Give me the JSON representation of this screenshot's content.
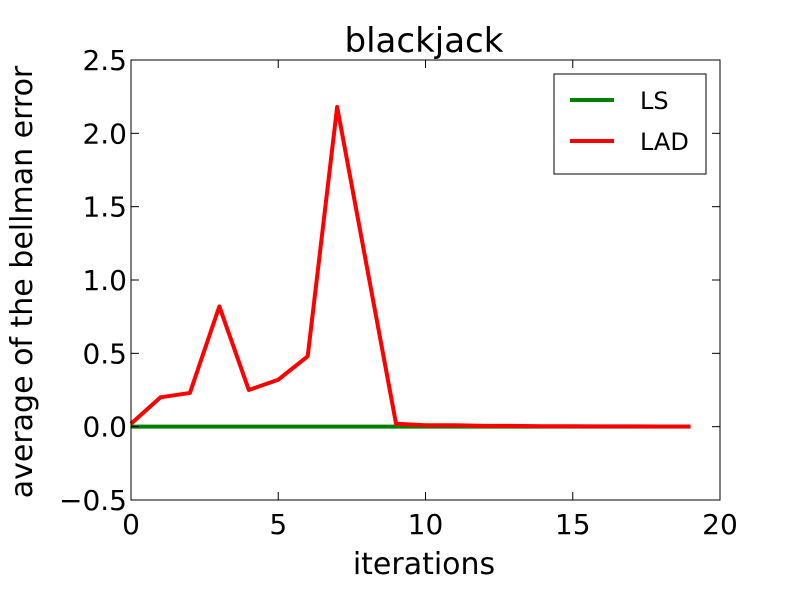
{
  "chart_data": {
    "type": "line",
    "title": "blackjack",
    "xlabel": "iterations",
    "ylabel": "average of the bellman error",
    "xlim": [
      0,
      20
    ],
    "ylim": [
      -0.5,
      2.5
    ],
    "xticks": [
      0,
      5,
      10,
      15,
      20
    ],
    "xtick_labels": [
      "0",
      "5",
      "10",
      "15",
      "20"
    ],
    "yticks": [
      -0.5,
      0.0,
      0.5,
      1.0,
      1.5,
      2.0,
      2.5
    ],
    "ytick_labels": [
      "−0.5",
      "0.0",
      "0.5",
      "1.0",
      "1.5",
      "2.0",
      "2.5"
    ],
    "grid": false,
    "legend_position": "top-right",
    "series": [
      {
        "name": "LS",
        "color": "#008000",
        "x": [
          0,
          1,
          2,
          3,
          4,
          5,
          6,
          7,
          8,
          9,
          10,
          11,
          12,
          13,
          14,
          15,
          16,
          17,
          18,
          19
        ],
        "y": [
          0,
          0,
          0,
          0,
          0,
          0,
          0,
          0,
          0,
          0,
          0,
          0,
          0,
          0,
          0,
          0,
          0,
          0,
          0,
          0
        ]
      },
      {
        "name": "LAD",
        "color": "#ff0000",
        "x": [
          0,
          1,
          2,
          3,
          4,
          5,
          6,
          7,
          8,
          9,
          10,
          11,
          12,
          13,
          14,
          15,
          16,
          17,
          18,
          19
        ],
        "y": [
          0.02,
          0.2,
          0.23,
          0.82,
          0.25,
          0.32,
          0.48,
          2.18,
          1.1,
          0.02,
          0.01,
          0.01,
          0.005,
          0.005,
          0.003,
          0.003,
          0.002,
          0.002,
          0.001,
          0.001
        ]
      }
    ]
  }
}
